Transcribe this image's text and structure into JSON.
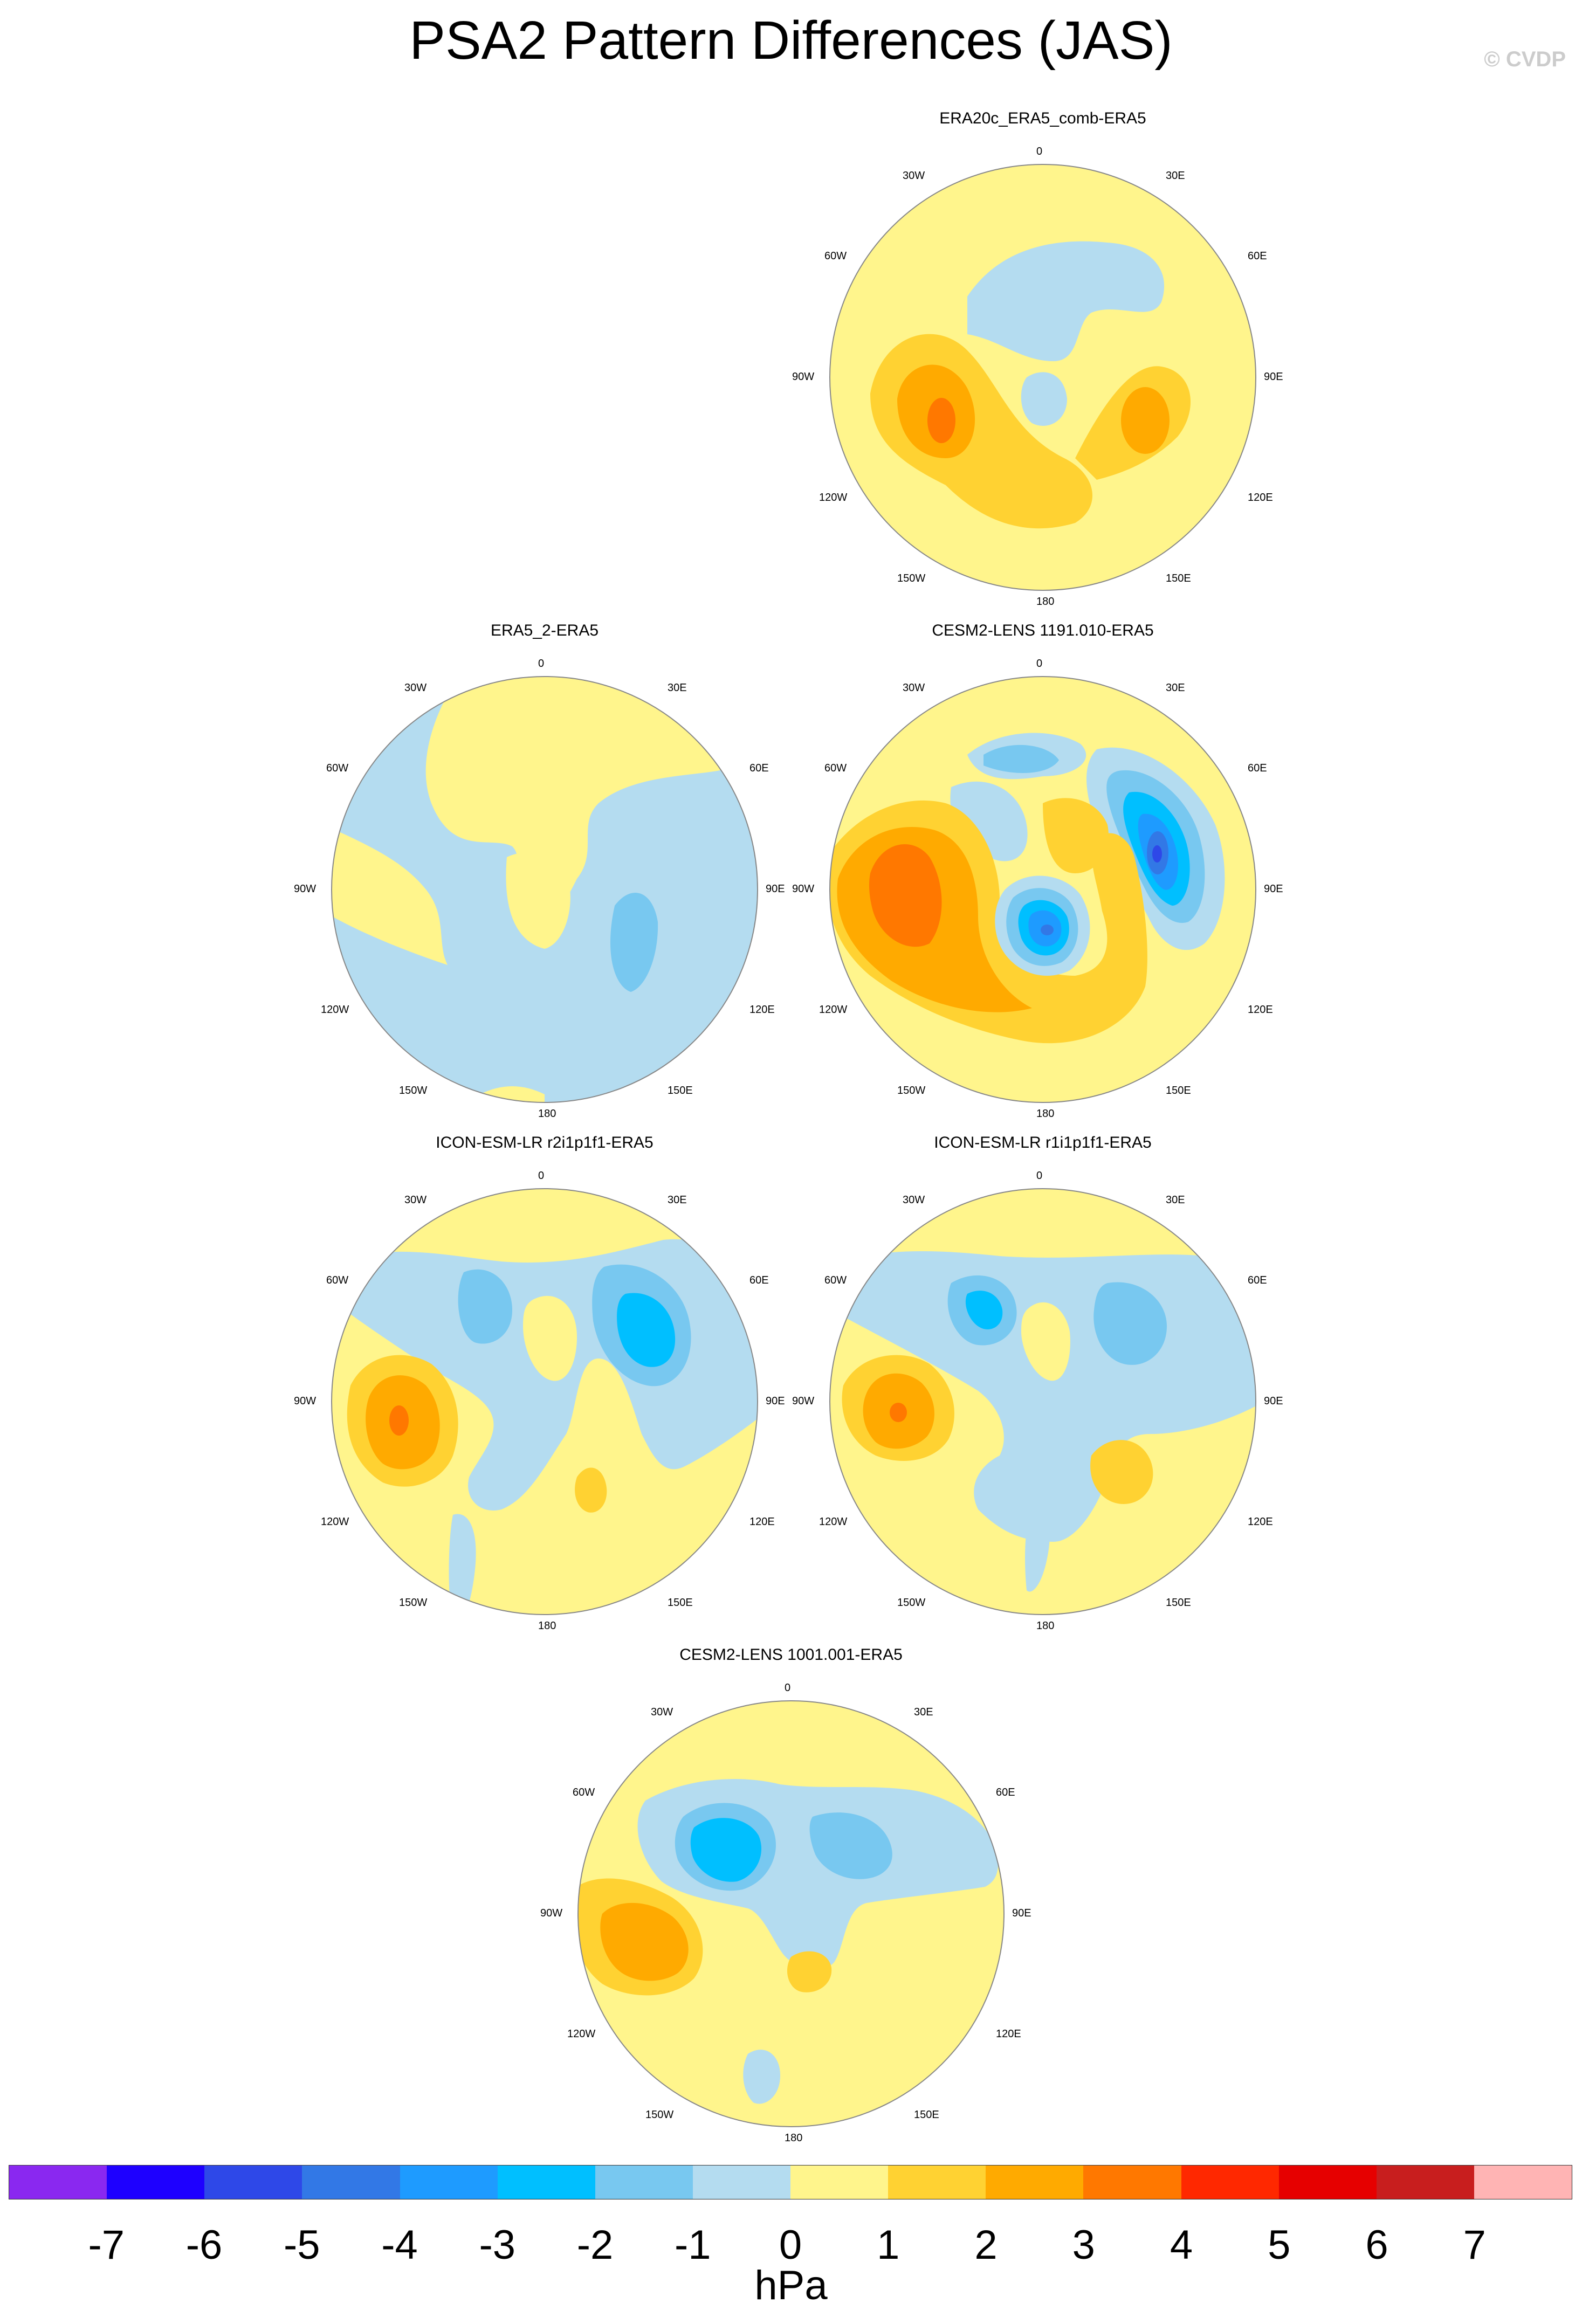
{
  "title": "PSA2 Pattern Differences (JAS)",
  "credit": "© CVDP",
  "lon_labels": {
    "top": "0",
    "bottom": "180",
    "left": "90W",
    "right": "90E",
    "upper_left_inner": "30W",
    "upper_right_inner": "30E",
    "upper_left_outer": "60W",
    "upper_right_outer": "60E",
    "lower_left_outer": "120W",
    "lower_right_outer": "120E",
    "lower_left_inner": "150W",
    "lower_right_inner": "150E"
  },
  "panels": [
    {
      "title": "ERA20c_ERA5_comb-ERA5"
    },
    {
      "title": "ERA5_2-ERA5"
    },
    {
      "title": "CESM2-LENS 1191.010-ERA5"
    },
    {
      "title": "ICON-ESM-LR r2i1p1f1-ERA5"
    },
    {
      "title": "ICON-ESM-LR r1i1p1f1-ERA5"
    },
    {
      "title": "CESM2-LENS 1001.001-ERA5"
    }
  ],
  "colorbar": {
    "units": "hPa",
    "tick_labels": [
      "-7",
      "-6",
      "-5",
      "-4",
      "-3",
      "-2",
      "-1",
      "0",
      "1",
      "2",
      "3",
      "4",
      "5",
      "6",
      "7"
    ],
    "colors": [
      "#8a28f0",
      "#1e00ff",
      "#2e48e8",
      "#3278e6",
      "#1e9bff",
      "#00bfff",
      "#78c8f0",
      "#b4dcf0",
      "#fff58c",
      "#ffd232",
      "#ffaa00",
      "#ff7800",
      "#ff2800",
      "#e60000",
      "#c81e1e",
      "#ffb4b4"
    ]
  }
}
